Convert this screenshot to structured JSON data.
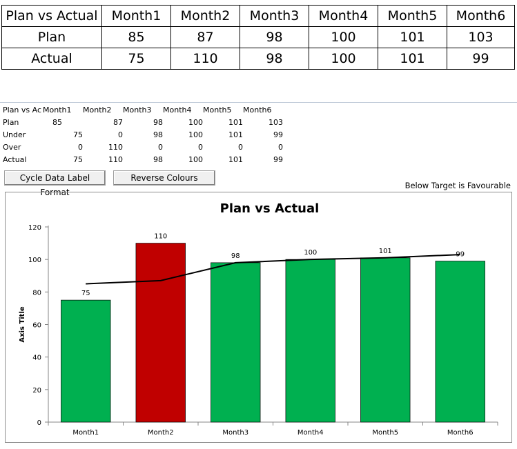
{
  "summary_table": {
    "header": [
      "Plan vs Actual",
      "Month1",
      "Month2",
      "Month3",
      "Month4",
      "Month5",
      "Month6"
    ],
    "rows": [
      [
        "Plan",
        "85",
        "87",
        "98",
        "100",
        "101",
        "103"
      ],
      [
        "Actual",
        "75",
        "110",
        "98",
        "100",
        "101",
        "99"
      ]
    ]
  },
  "sheet": {
    "header": [
      "Plan vs Ac",
      "Month1",
      "Month2",
      "Month3",
      "Month4",
      "Month5",
      "Month6"
    ],
    "rows": [
      [
        "Plan",
        "85",
        "87",
        "98",
        "100",
        "101",
        "103"
      ],
      [
        "Under",
        "75",
        "0",
        "98",
        "100",
        "101",
        "99"
      ],
      [
        "Over",
        "0",
        "110",
        "0",
        "0",
        "0",
        "0"
      ],
      [
        "Actual",
        "75",
        "110",
        "98",
        "100",
        "101",
        "99"
      ]
    ]
  },
  "buttons": {
    "cycle_label": "Cycle Data Label Format",
    "reverse_label": "Reverse Colours"
  },
  "note": "Below Target is Favourable",
  "colors": {
    "under": "#00b050",
    "over": "#c00000",
    "plan_line": "#000000"
  },
  "chart_data": {
    "type": "bar",
    "title": "Plan vs Actual",
    "ylabel": "Axis Title",
    "xlabel": "",
    "categories": [
      "Month1",
      "Month2",
      "Month3",
      "Month4",
      "Month5",
      "Month6"
    ],
    "series": [
      {
        "values": [
          75,
          0,
          98,
          100,
          101,
          99
        ],
        "color": "#00b050",
        "kind": "bar"
      },
      {
        "values": [
          0,
          110,
          0,
          0,
          0,
          0
        ],
        "color": "#c00000",
        "kind": "bar"
      },
      {
        "values": [
          85,
          87,
          98,
          100,
          101,
          103
        ],
        "color": "#000000",
        "kind": "line"
      }
    ],
    "data_labels": [
      "75",
      "110",
      "98",
      "100",
      "101",
      "99"
    ],
    "ylim": [
      0,
      120
    ],
    "yticks": [
      "0",
      "20",
      "40",
      "60",
      "80",
      "100",
      "120"
    ],
    "grid": false,
    "legend": "none"
  }
}
